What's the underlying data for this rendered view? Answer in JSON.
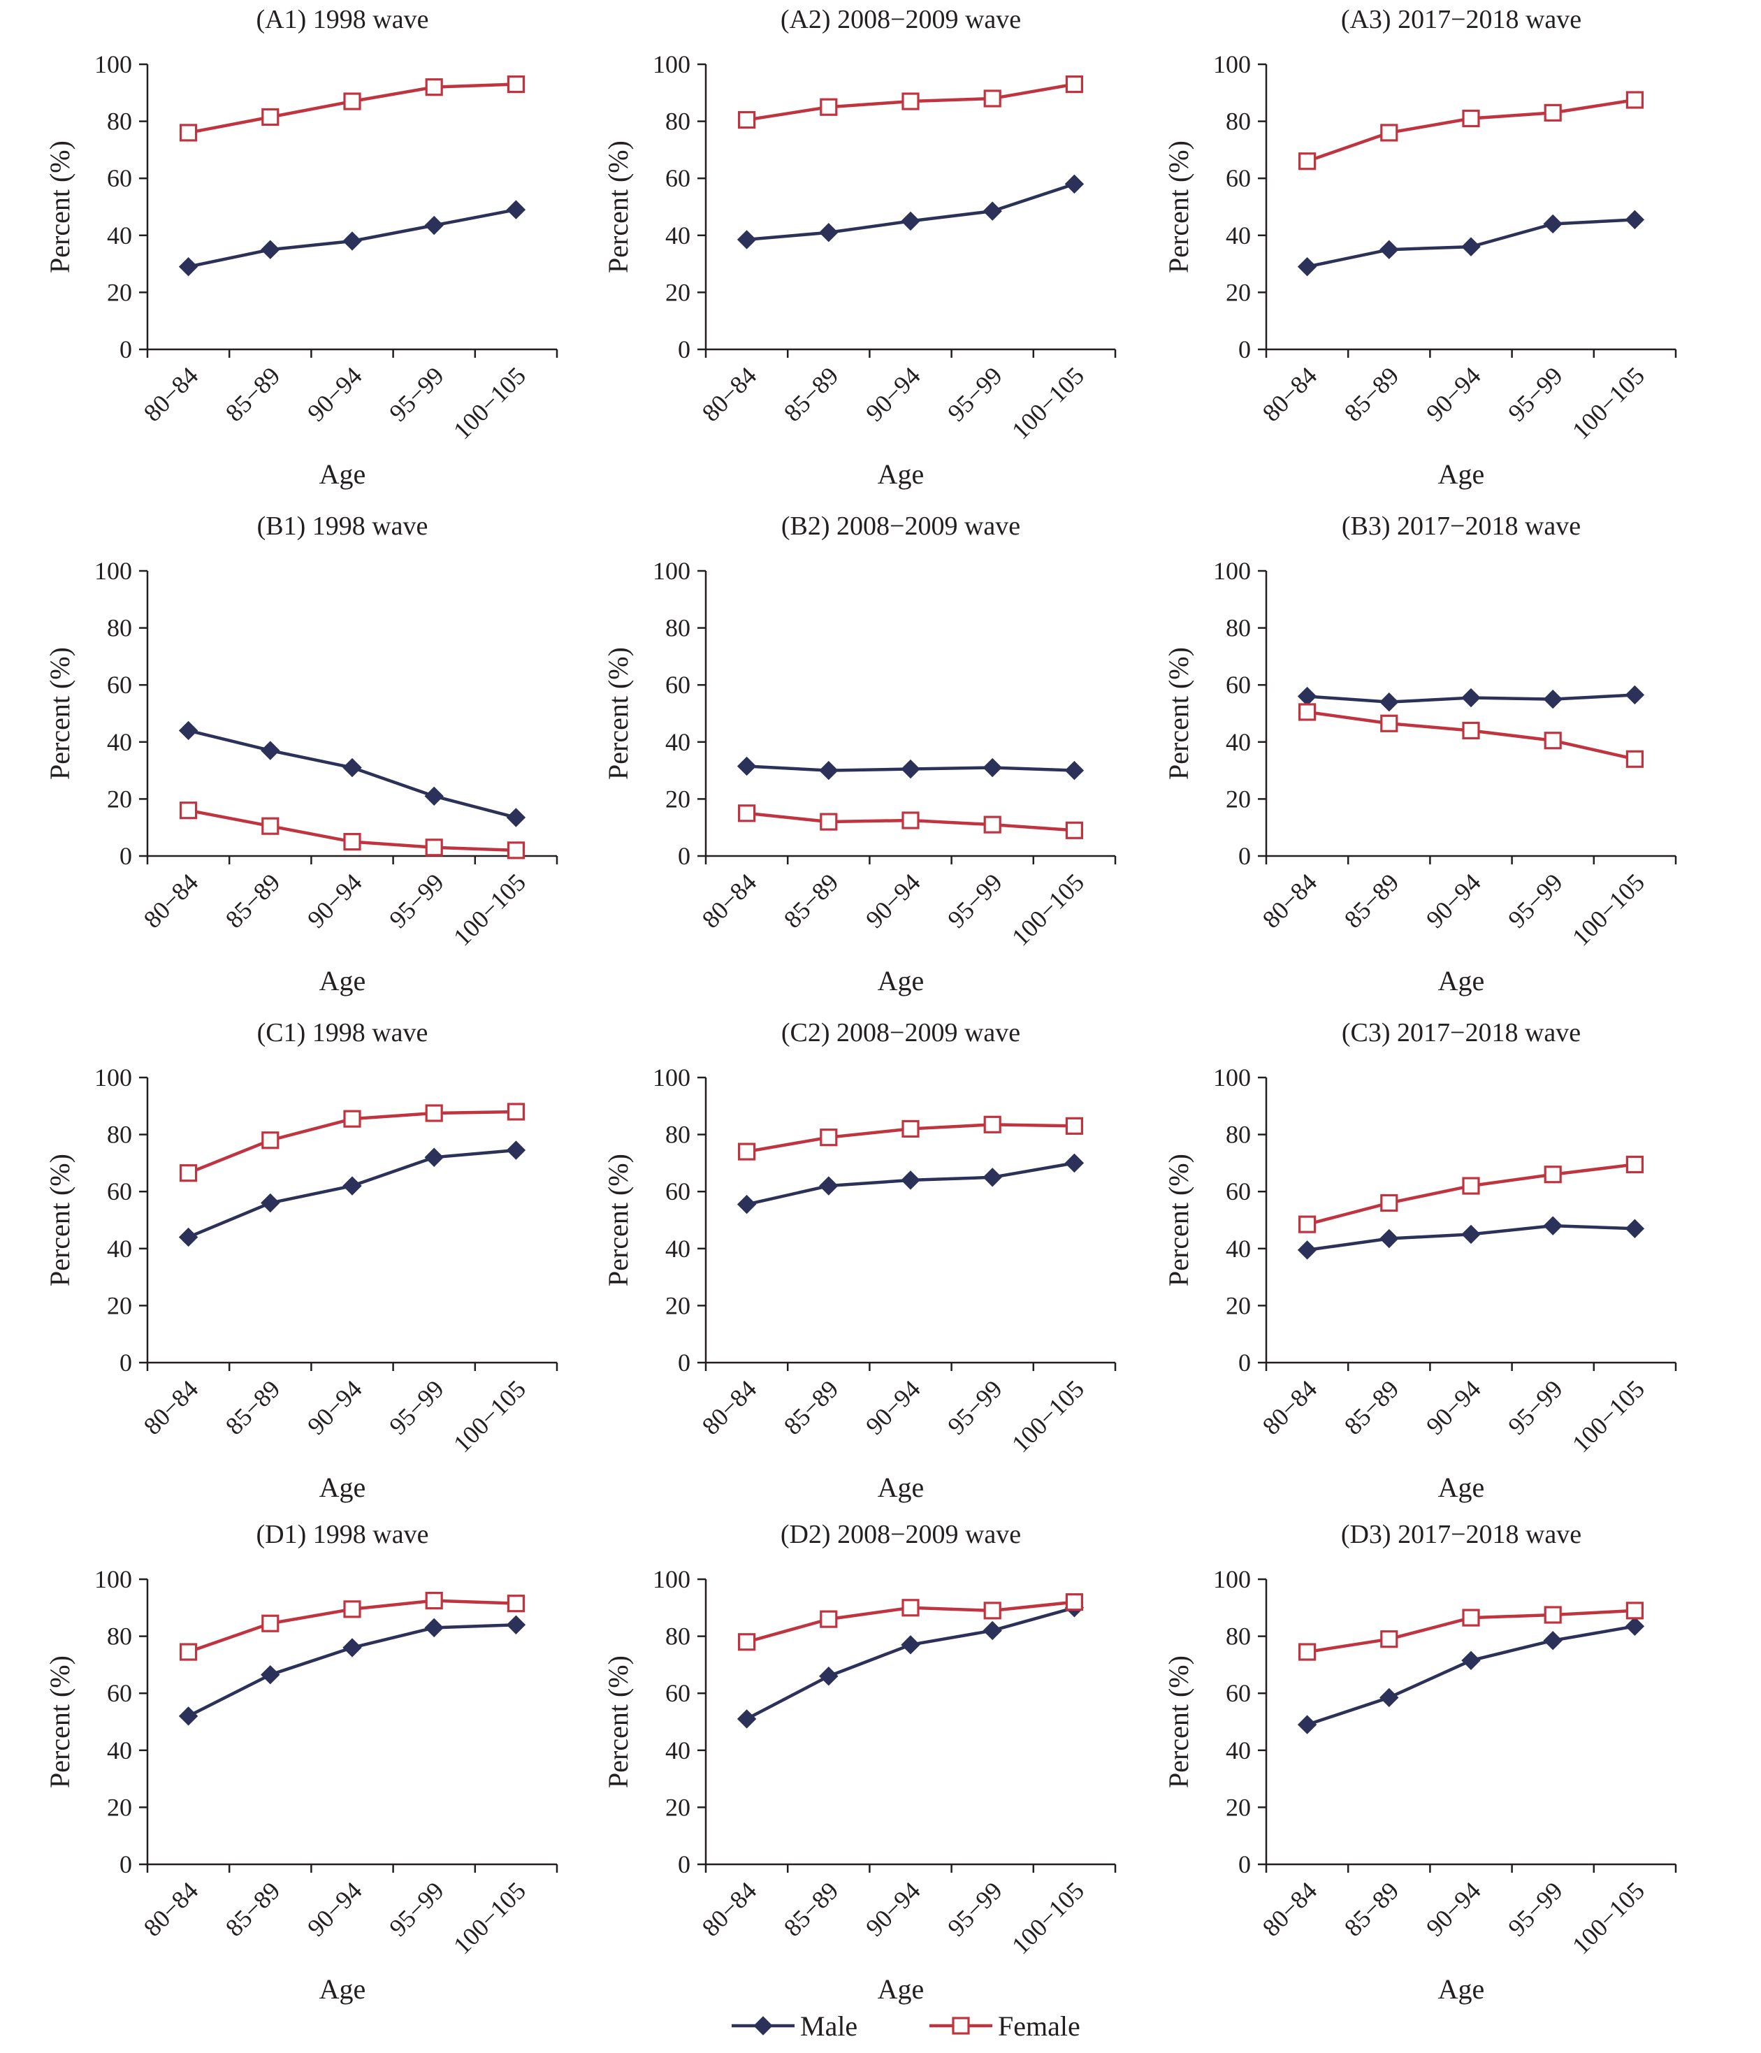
{
  "colors": {
    "male": "#2b3158",
    "female": "#c0343f",
    "axis": "#231f20"
  },
  "legend": [
    {
      "key": "male",
      "label": "Male",
      "marker": "diamond-filled"
    },
    {
      "key": "female",
      "label": "Female",
      "marker": "square-open"
    }
  ],
  "chart_data": [
    {
      "type": "line",
      "title": "(A1) 1998 wave",
      "xlabel": "Age",
      "ylabel": "Percent (%)",
      "categories": [
        "80−84",
        "85−89",
        "90−94",
        "95−99",
        "100−105"
      ],
      "ylim": [
        0,
        100
      ],
      "yticks": [
        0,
        20,
        40,
        60,
        80,
        100
      ],
      "series": [
        {
          "name": "Male",
          "values": [
            29,
            35,
            38,
            43.5,
            49
          ]
        },
        {
          "name": "Female",
          "values": [
            76,
            81.5,
            87,
            92,
            93
          ]
        }
      ]
    },
    {
      "type": "line",
      "title": "(A2) 2008−2009 wave",
      "xlabel": "Age",
      "ylabel": "Percent (%)",
      "categories": [
        "80−84",
        "85−89",
        "90−94",
        "95−99",
        "100−105"
      ],
      "ylim": [
        0,
        100
      ],
      "yticks": [
        0,
        20,
        40,
        60,
        80,
        100
      ],
      "series": [
        {
          "name": "Male",
          "values": [
            38.5,
            41,
            45,
            48.5,
            58
          ]
        },
        {
          "name": "Female",
          "values": [
            80.5,
            85,
            87,
            88,
            93
          ]
        }
      ]
    },
    {
      "type": "line",
      "title": "(A3) 2017−2018 wave",
      "xlabel": "Age",
      "ylabel": "Percent (%)",
      "categories": [
        "80−84",
        "85−89",
        "90−94",
        "95−99",
        "100−105"
      ],
      "ylim": [
        0,
        100
      ],
      "yticks": [
        0,
        20,
        40,
        60,
        80,
        100
      ],
      "series": [
        {
          "name": "Male",
          "values": [
            29,
            35,
            36,
            44,
            45.5
          ]
        },
        {
          "name": "Female",
          "values": [
            66,
            76,
            81,
            83,
            87.5
          ]
        }
      ]
    },
    {
      "type": "line",
      "title": "(B1) 1998 wave",
      "xlabel": "Age",
      "ylabel": "Percent (%)",
      "categories": [
        "80−84",
        "85−89",
        "90−94",
        "95−99",
        "100−105"
      ],
      "ylim": [
        0,
        100
      ],
      "yticks": [
        0,
        20,
        40,
        60,
        80,
        100
      ],
      "series": [
        {
          "name": "Male",
          "values": [
            44,
            37,
            31,
            21,
            13.5
          ]
        },
        {
          "name": "Female",
          "values": [
            16,
            10.5,
            5,
            3,
            2
          ]
        }
      ]
    },
    {
      "type": "line",
      "title": "(B2) 2008−2009 wave",
      "xlabel": "Age",
      "ylabel": "Percent (%)",
      "categories": [
        "80−84",
        "85−89",
        "90−94",
        "95−99",
        "100−105"
      ],
      "ylim": [
        0,
        100
      ],
      "yticks": [
        0,
        20,
        40,
        60,
        80,
        100
      ],
      "series": [
        {
          "name": "Male",
          "values": [
            31.5,
            30,
            30.5,
            31,
            30
          ]
        },
        {
          "name": "Female",
          "values": [
            15,
            12,
            12.5,
            11,
            9
          ]
        }
      ]
    },
    {
      "type": "line",
      "title": "(B3) 2017−2018 wave",
      "xlabel": "Age",
      "ylabel": "Percent (%)",
      "categories": [
        "80−84",
        "85−89",
        "90−94",
        "95−99",
        "100−105"
      ],
      "ylim": [
        0,
        100
      ],
      "yticks": [
        0,
        20,
        40,
        60,
        80,
        100
      ],
      "series": [
        {
          "name": "Male",
          "values": [
            56,
            54,
            55.5,
            55,
            56.5
          ]
        },
        {
          "name": "Female",
          "values": [
            50.5,
            46.5,
            44,
            40.5,
            34
          ]
        }
      ]
    },
    {
      "type": "line",
      "title": "(C1) 1998 wave",
      "xlabel": "Age",
      "ylabel": "Percent (%)",
      "categories": [
        "80−84",
        "85−89",
        "90−94",
        "95−99",
        "100−105"
      ],
      "ylim": [
        0,
        100
      ],
      "yticks": [
        0,
        20,
        40,
        60,
        80,
        100
      ],
      "series": [
        {
          "name": "Male",
          "values": [
            44,
            56,
            62,
            72,
            74.5
          ]
        },
        {
          "name": "Female",
          "values": [
            66.5,
            78,
            85.5,
            87.5,
            88
          ]
        }
      ]
    },
    {
      "type": "line",
      "title": "(C2) 2008−2009 wave",
      "xlabel": "Age",
      "ylabel": "Percent (%)",
      "categories": [
        "80−84",
        "85−89",
        "90−94",
        "95−99",
        "100−105"
      ],
      "ylim": [
        0,
        100
      ],
      "yticks": [
        0,
        20,
        40,
        60,
        80,
        100
      ],
      "series": [
        {
          "name": "Male",
          "values": [
            55.5,
            62,
            64,
            65,
            70
          ]
        },
        {
          "name": "Female",
          "values": [
            74,
            79,
            82,
            83.5,
            83
          ]
        }
      ]
    },
    {
      "type": "line",
      "title": "(C3) 2017−2018 wave",
      "xlabel": "Age",
      "ylabel": "Percent (%)",
      "categories": [
        "80−84",
        "85−89",
        "90−94",
        "95−99",
        "100−105"
      ],
      "ylim": [
        0,
        100
      ],
      "yticks": [
        0,
        20,
        40,
        60,
        80,
        100
      ],
      "series": [
        {
          "name": "Male",
          "values": [
            39.5,
            43.5,
            45,
            48,
            47
          ]
        },
        {
          "name": "Female",
          "values": [
            48.5,
            56,
            62,
            66,
            69.5
          ]
        }
      ]
    },
    {
      "type": "line",
      "title": "(D1) 1998 wave",
      "xlabel": "Age",
      "ylabel": "Percent (%)",
      "categories": [
        "80−84",
        "85−89",
        "90−94",
        "95−99",
        "100−105"
      ],
      "ylim": [
        0,
        100
      ],
      "yticks": [
        0,
        20,
        40,
        60,
        80,
        100
      ],
      "series": [
        {
          "name": "Male",
          "values": [
            52,
            66.5,
            76,
            83,
            84
          ]
        },
        {
          "name": "Female",
          "values": [
            74.5,
            84.5,
            89.5,
            92.5,
            91.5
          ]
        }
      ]
    },
    {
      "type": "line",
      "title": "(D2) 2008−2009 wave",
      "xlabel": "Age",
      "ylabel": "Percent (%)",
      "categories": [
        "80−84",
        "85−89",
        "90−94",
        "95−99",
        "100−105"
      ],
      "ylim": [
        0,
        100
      ],
      "yticks": [
        0,
        20,
        40,
        60,
        80,
        100
      ],
      "series": [
        {
          "name": "Male",
          "values": [
            51,
            66,
            77,
            82,
            90
          ]
        },
        {
          "name": "Female",
          "values": [
            78,
            86,
            90,
            89,
            92
          ]
        }
      ]
    },
    {
      "type": "line",
      "title": "(D3) 2017−2018 wave",
      "xlabel": "Age",
      "ylabel": "Percent (%)",
      "categories": [
        "80−84",
        "85−89",
        "90−94",
        "95−99",
        "100−105"
      ],
      "ylim": [
        0,
        100
      ],
      "yticks": [
        0,
        20,
        40,
        60,
        80,
        100
      ],
      "series": [
        {
          "name": "Male",
          "values": [
            49,
            58.5,
            71.5,
            78.5,
            83.5
          ]
        },
        {
          "name": "Female",
          "values": [
            74.5,
            79,
            86.5,
            87.5,
            89
          ]
        }
      ]
    }
  ]
}
